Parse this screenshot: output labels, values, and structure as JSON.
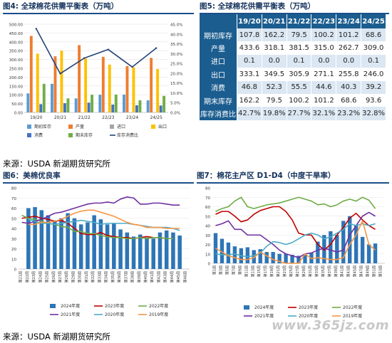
{
  "fig4": {
    "title": "图4: 全球棉花供需平衡表（万吨）",
    "chart_data": {
      "type": "bar",
      "categories": [
        "19/20",
        "20/21",
        "21/22",
        "22/23",
        "23/24",
        "24/25"
      ],
      "series": [
        {
          "name": "期初库存",
          "values": [
            107.8,
            162.2,
            79.5,
            100.2,
            101.2,
            68.6
          ],
          "color": "#5b9bd5"
        },
        {
          "name": "产量",
          "values": [
            433.6,
            318.1,
            381.5,
            315.0,
            262.7,
            309.0
          ],
          "color": "#ed7d31"
        },
        {
          "name": "进口",
          "values": [
            0.1,
            0.0,
            0.1,
            0.0,
            0.0,
            0.1
          ],
          "color": "#a5a5a5"
        },
        {
          "name": "出口",
          "values": [
            333.1,
            349.5,
            305.9,
            271.1,
            255.8,
            246.0
          ],
          "color": "#ffc000"
        },
        {
          "name": "消费",
          "values": [
            46.8,
            52.3,
            55.5,
            44.6,
            40.3,
            39.2
          ],
          "color": "#4472c4"
        },
        {
          "name": "期末库存",
          "values": [
            162.2,
            79.5,
            100.2,
            101.2,
            68.6,
            93.6
          ],
          "color": "#70ad47"
        }
      ],
      "line": {
        "name": "库存消费比",
        "values": [
          42.7,
          19.8,
          27.7,
          32.1,
          23.2,
          32.8
        ],
        "color": "#264478"
      },
      "ylim": [
        0,
        500
      ],
      "y2lim": [
        0,
        45
      ],
      "yticks": [
        "0.00",
        "50.00",
        "100.00",
        "150.00",
        "200.00",
        "250.00",
        "300.00",
        "350.00",
        "400.00",
        "450.00",
        "500.00"
      ],
      "y2ticks": [
        "0.0%",
        "5.0%",
        "10.0%",
        "15.0%",
        "20.0%",
        "25.0%",
        "30.0%",
        "35.0%",
        "40.0%",
        "45.0%"
      ],
      "legend_position": "bottom"
    }
  },
  "fig5": {
    "title": "图5: 全球棉花供需平衡表（万吨）",
    "columns": [
      "",
      "19/20",
      "20/21",
      "21/22",
      "22/23",
      "23/24",
      "24/25"
    ],
    "rows": [
      {
        "label": "期初库存",
        "values": [
          "107.8",
          "162.2",
          "79.5",
          "100.2",
          "101.2",
          "68.6"
        ]
      },
      {
        "label": "产量",
        "values": [
          "433.6",
          "318.1",
          "381.5",
          "315.0",
          "262.7",
          "309.0"
        ]
      },
      {
        "label": "进口",
        "values": [
          "0.1",
          "0.0",
          "0.1",
          "0.0",
          "0.0",
          "0.1"
        ]
      },
      {
        "label": "出口",
        "values": [
          "333.1",
          "349.5",
          "305.9",
          "271.1",
          "255.8",
          "246.0"
        ]
      },
      {
        "label": "消费",
        "values": [
          "46.8",
          "52.3",
          "55.5",
          "44.6",
          "40.3",
          "39.2"
        ]
      },
      {
        "label": "期末库存",
        "values": [
          "162.2",
          "79.5",
          "100.2",
          "101.2",
          "68.6",
          "93.6"
        ]
      },
      {
        "label": "库存消费比",
        "values": [
          "42.7%",
          "19.8%",
          "27.7%",
          "32.1%",
          "23.2%",
          "32.8%"
        ]
      }
    ]
  },
  "source1": "来源：USDA 新湖期货研究所",
  "fig6": {
    "title": "图6：美棉优良率",
    "chart_data": {
      "type": "line",
      "x": [
        "第21周",
        "第22周",
        "第23周",
        "第24周",
        "第25周",
        "第26周",
        "第27周",
        "第28周",
        "第29周",
        "第30周",
        "第31周",
        "第32周",
        "第33周",
        "第34周",
        "第35周",
        "第36周",
        "第37周",
        "第38周",
        "第39周",
        "第40周",
        "第41周",
        "第42周",
        "第43周",
        "第44周",
        "第45周",
        "第46周"
      ],
      "bars": {
        "name": "2024年度",
        "values": [
          null,
          60,
          61,
          58,
          53,
          48,
          50,
          55,
          50,
          44,
          46,
          53,
          49,
          44,
          45,
          39,
          36,
          32,
          34,
          31,
          30,
          36,
          38,
          36,
          33,
          null
        ],
        "color": "#2e75b6"
      },
      "series": [
        {
          "name": "2023年度",
          "values": [
            50,
            51,
            52,
            50,
            49,
            47,
            48,
            45,
            40,
            35,
            34,
            34,
            36,
            33,
            32,
            31,
            31,
            30,
            31,
            32,
            31,
            31,
            30,
            null,
            null,
            null
          ],
          "color": "#c00000"
        },
        {
          "name": "2022年度",
          "values": [
            53,
            50,
            49,
            47,
            45,
            44,
            42,
            41,
            37,
            37,
            35,
            35,
            33,
            32,
            31,
            31,
            30,
            30,
            31,
            30,
            31,
            31,
            30,
            30,
            null,
            null
          ],
          "color": "#70ad47"
        },
        {
          "name": "2021年度",
          "values": [
            46,
            45,
            47,
            49,
            52,
            55,
            56,
            58,
            60,
            62,
            64,
            65,
            65,
            66,
            65,
            69,
            71,
            70,
            64,
            64,
            65,
            65,
            64,
            63,
            63,
            null
          ],
          "color": "#7030a0"
        },
        {
          "name": "2020年度",
          "values": [
            null,
            49,
            47,
            45,
            45,
            44,
            45,
            46,
            47,
            48,
            47,
            46,
            44,
            45,
            45,
            45,
            45,
            44,
            43,
            42,
            41,
            41,
            41,
            40,
            38,
            null
          ],
          "color": "#4bacc6"
        },
        {
          "name": "2019年度",
          "values": [
            null,
            44,
            44,
            46,
            46,
            47,
            49,
            52,
            55,
            57,
            58,
            58,
            56,
            54,
            52,
            49,
            46,
            44,
            43,
            41,
            41,
            41,
            40,
            40,
            40,
            null
          ],
          "color": "#f79646"
        }
      ],
      "ylim": [
        0,
        80
      ],
      "yticks": [
        "0",
        "10",
        "20",
        "30",
        "40",
        "50",
        "60",
        "70",
        "80"
      ],
      "legend_position": "bottom"
    }
  },
  "fig7": {
    "title": "图7：棉花主产区 D1-D4（中度干旱率）",
    "chart_data": {
      "type": "line",
      "x": [
        "第1周",
        "第3周",
        "第5周",
        "第7周",
        "第9周",
        "第11周",
        "第13周",
        "第15周",
        "第17周",
        "第19周",
        "第21周",
        "第23周",
        "第25周",
        "第27周",
        "第29周",
        "第31周",
        "第33周",
        "第35周",
        "第37周",
        "第39周",
        "第41周",
        "第43周",
        "第45周",
        "第47周",
        "第49周",
        "第51周",
        "第53周"
      ],
      "bars": {
        "name": "2024年度",
        "values": [
          32,
          26,
          22,
          18,
          16,
          17,
          14,
          15,
          12,
          12,
          10,
          10,
          9,
          8,
          9,
          11,
          23,
          30,
          34,
          30,
          45,
          50,
          40,
          28,
          20,
          21,
          null
        ],
        "color": "#2e75b6"
      },
      "series": [
        {
          "name": "2023年度",
          "values": [
            52,
            55,
            55,
            50,
            44,
            46,
            52,
            56,
            58,
            60,
            60,
            55,
            46,
            32,
            30,
            30,
            20,
            14,
            20,
            30,
            38,
            48,
            53,
            46,
            40,
            36,
            null
          ],
          "color": "#c00000"
        },
        {
          "name": "2022年度",
          "values": [
            55,
            58,
            60,
            66,
            70,
            60,
            58,
            60,
            62,
            63,
            64,
            66,
            68,
            70,
            68,
            66,
            62,
            63,
            60,
            62,
            66,
            68,
            66,
            70,
            67,
            58,
            null
          ],
          "color": "#70ad47"
        },
        {
          "name": "2021年度",
          "values": [
            40,
            42,
            45,
            36,
            36,
            30,
            30,
            30,
            25,
            20,
            14,
            10,
            8,
            6,
            10,
            11,
            14,
            16,
            14,
            12,
            14,
            30,
            40,
            50,
            54,
            50,
            null
          ],
          "color": "#7030a0"
        },
        {
          "name": "2020年度",
          "values": [
            10,
            9,
            9,
            10,
            8,
            7,
            8,
            11,
            18,
            23,
            22,
            20,
            22,
            26,
            30,
            32,
            30,
            26,
            28,
            32,
            36,
            42,
            40,
            42,
            40,
            42,
            null
          ],
          "color": "#4bacc6"
        },
        {
          "name": "2019年度",
          "values": [
            16,
            12,
            8,
            6,
            4,
            4,
            6,
            12,
            8,
            4,
            2,
            0,
            0,
            0,
            10,
            5,
            6,
            5,
            4,
            4,
            6,
            20,
            30,
            45,
            20,
            14,
            null
          ],
          "color": "#f79646"
        }
      ],
      "ylim": [
        0,
        80
      ],
      "yticks": [
        "0",
        "10",
        "20",
        "30",
        "40",
        "50",
        "60",
        "70",
        "80"
      ],
      "legend_position": "bottom"
    }
  },
  "source2": "来源：USDA 新湖期货研究所",
  "watermark": "www.365jz.com"
}
